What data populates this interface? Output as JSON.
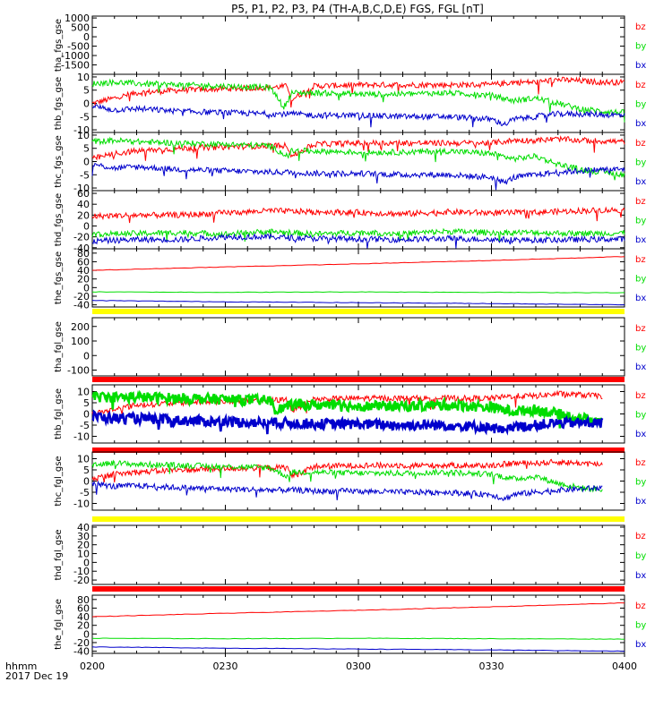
{
  "title": "P5, P1, P2, P3, P4 (TH-A,B,C,D,E) FGS, FGL [nT]",
  "footer": {
    "line1": "hhmm",
    "line2": "2017 Dec 19"
  },
  "colors": {
    "bz": "#ff0000",
    "by": "#00dd00",
    "bx": "#0000cc",
    "yellow": "#ffff00",
    "red": "#ff0000"
  },
  "chart_data": {
    "type": "line",
    "x_ticks": [
      "0200",
      "0230",
      "0300",
      "0330",
      "0400"
    ],
    "x_range_minutes": [
      0,
      120
    ],
    "panels": [
      {
        "ylabel": "tha_fgs_gse",
        "ylim": [
          -2000,
          1100
        ],
        "yticks": [
          1000,
          500,
          0,
          -500,
          -1000,
          -1500
        ],
        "legend": [
          "bz",
          "by",
          "bx"
        ],
        "series": [],
        "status_bar": null
      },
      {
        "ylabel": "thb_fgs_gse",
        "ylim": [
          -11,
          11
        ],
        "yticks": [
          10,
          5,
          0,
          -5,
          -10
        ],
        "legend": [
          "bz",
          "by",
          "bx"
        ],
        "status_bar": null,
        "series": [
          {
            "name": "bz",
            "mode": "wide",
            "x": [
              0,
              5,
              10,
              15,
              20,
              30,
              40,
              44,
              45,
              50,
              60,
              70,
              80,
              90,
              95,
              100,
              105,
              110,
              115,
              120
            ],
            "y": [
              0,
              2,
              4,
              4.5,
              5,
              5.5,
              6,
              6.5,
              1.5,
              6.5,
              7,
              7,
              7,
              7,
              8,
              8,
              9,
              8.5,
              8,
              8
            ]
          },
          {
            "name": "by",
            "mode": "wide",
            "x": [
              0,
              5,
              10,
              20,
              30,
              40,
              42,
              43,
              45,
              50,
              60,
              70,
              80,
              90,
              95,
              100,
              105,
              110,
              115,
              120
            ],
            "y": [
              7.5,
              8,
              7.5,
              7,
              6.5,
              6,
              2,
              -2,
              4,
              4,
              3.5,
              3.5,
              4,
              3,
              1,
              2,
              0,
              -2,
              -3,
              -3.5
            ]
          },
          {
            "name": "bx",
            "mode": "wide",
            "x": [
              0,
              5,
              10,
              20,
              30,
              40,
              45,
              50,
              60,
              70,
              80,
              90,
              93,
              95,
              100,
              105,
              110,
              120
            ],
            "y": [
              -1,
              -2.5,
              -2,
              -3,
              -3.5,
              -4,
              -4,
              -4.5,
              -4.5,
              -5,
              -5,
              -6,
              -8,
              -6,
              -5,
              -4,
              -4,
              -4.5
            ]
          }
        ]
      },
      {
        "ylabel": "thc_fgs_gse",
        "ylim": [
          -11,
          11
        ],
        "yticks": [
          10,
          5,
          0,
          -5,
          -10
        ],
        "legend": [
          "bz",
          "by",
          "bx"
        ],
        "status_bar": null,
        "series": [
          {
            "name": "bz",
            "mode": "wide",
            "x": [
              0,
              5,
              10,
              20,
              30,
              40,
              44,
              45,
              50,
              60,
              70,
              80,
              90,
              95,
              100,
              105,
              110,
              120
            ],
            "y": [
              1,
              3,
              4,
              5,
              5.5,
              6,
              6,
              2,
              6.5,
              7,
              7,
              7,
              7,
              8,
              8,
              8.5,
              8,
              7.5
            ]
          },
          {
            "name": "by",
            "mode": "wide",
            "x": [
              0,
              5,
              10,
              20,
              30,
              40,
              44,
              45,
              50,
              60,
              70,
              80,
              90,
              95,
              100,
              105,
              110,
              115,
              120
            ],
            "y": [
              7.5,
              8,
              7.5,
              7,
              6.5,
              6,
              2,
              4,
              4,
              3.5,
              3.5,
              4,
              3,
              1,
              2,
              -1,
              -3,
              -4,
              -5
            ]
          },
          {
            "name": "bx",
            "mode": "wide",
            "x": [
              0,
              5,
              10,
              20,
              30,
              40,
              45,
              50,
              60,
              70,
              80,
              90,
              93,
              95,
              100,
              105,
              110,
              115,
              120
            ],
            "y": [
              -1,
              -2.5,
              -2,
              -3,
              -3.5,
              -4,
              -4,
              -4.5,
              -4.5,
              -5,
              -5,
              -6,
              -8,
              -6,
              -5,
              -4,
              -3.5,
              -3,
              -3
            ]
          }
        ]
      },
      {
        "ylabel": "thd_fgs_gse",
        "ylim": [
          -42,
          65
        ],
        "yticks": [
          60,
          40,
          20,
          0,
          -20,
          -40
        ],
        "legend": [
          "bz",
          "by",
          "bx"
        ],
        "status_bar": null,
        "series": [
          {
            "name": "bz",
            "mode": "wide",
            "x": [
              0,
              10,
              20,
              30,
              40,
              50,
              60,
              70,
              80,
              90,
              100,
              110,
              120
            ],
            "y": [
              18,
              20,
              20,
              24,
              28,
              26,
              25,
              22,
              26,
              24,
              25,
              28,
              30
            ]
          },
          {
            "name": "by",
            "mode": "wide",
            "x": [
              0,
              10,
              20,
              30,
              40,
              50,
              60,
              70,
              80,
              90,
              100,
              110,
              120
            ],
            "y": [
              -15,
              -14,
              -12,
              -15,
              -10,
              -15,
              -12,
              -14,
              -10,
              -12,
              -12,
              -14,
              -13
            ]
          },
          {
            "name": "bx",
            "mode": "wide",
            "x": [
              0,
              10,
              20,
              30,
              40,
              50,
              60,
              70,
              80,
              90,
              100,
              110,
              120
            ],
            "y": [
              -28,
              -25,
              -25,
              -20,
              -20,
              -23,
              -24,
              -25,
              -23,
              -25,
              -26,
              -25,
              -24
            ]
          }
        ]
      },
      {
        "ylabel": "the_fgs_gse",
        "ylim": [
          -45,
          90
        ],
        "yticks": [
          80,
          60,
          40,
          20,
          0,
          -20,
          -40
        ],
        "legend": [
          "bz",
          "by",
          "bx"
        ],
        "status_bar": "yellow",
        "series": [
          {
            "name": "bz",
            "mode": "smooth",
            "x": [
              0,
              30,
              60,
              90,
              120
            ],
            "y": [
              40,
              48,
              55,
              63,
              72
            ]
          },
          {
            "name": "by",
            "mode": "smooth",
            "x": [
              0,
              30,
              60,
              90,
              120
            ],
            "y": [
              -10,
              -11,
              -10,
              -11,
              -12
            ]
          },
          {
            "name": "bx",
            "mode": "smooth",
            "x": [
              0,
              30,
              60,
              90,
              120
            ],
            "y": [
              -30,
              -33,
              -35,
              -37,
              -40
            ]
          }
        ]
      },
      {
        "ylabel": "tha_fgl_gse",
        "ylim": [
          -140,
          260
        ],
        "yticks": [
          200,
          100,
          0,
          -100
        ],
        "legend": [
          "bz",
          "by",
          "bx"
        ],
        "series": [],
        "status_bar": "red"
      },
      {
        "ylabel": "thb_fgl_gse",
        "ylim": [
          -13,
          13
        ],
        "yticks": [
          10,
          5,
          0,
          -5,
          -10
        ],
        "legend": [
          "bz",
          "by",
          "bx"
        ],
        "status_bar": "red",
        "series": [
          {
            "name": "bz",
            "mode": "wide",
            "x": [
              0,
              5,
              10,
              20,
              30,
              40,
              44,
              45,
              50,
              60,
              70,
              80,
              90,
              95,
              100,
              105,
              110,
              115
            ],
            "y": [
              0,
              2,
              4,
              5,
              5.5,
              6,
              6.5,
              1.5,
              6.5,
              7,
              7,
              7,
              7,
              8,
              8,
              9,
              8.5,
              8
            ]
          },
          {
            "name": "by",
            "mode": "band",
            "x": [
              0,
              10,
              20,
              30,
              40,
              42,
              45,
              50,
              60,
              70,
              80,
              90,
              95,
              100,
              105,
              110,
              115
            ],
            "y": [
              7.5,
              7.5,
              7,
              6.5,
              6,
              2,
              4,
              4,
              3.5,
              3.5,
              4,
              3,
              1,
              2,
              0,
              -2,
              -3
            ]
          },
          {
            "name": "bx",
            "mode": "band",
            "x": [
              0,
              5,
              10,
              20,
              30,
              40,
              45,
              50,
              60,
              70,
              80,
              90,
              93,
              95,
              100,
              105,
              110,
              115
            ],
            "y": [
              -1,
              -2,
              -2,
              -3,
              -3.5,
              -4,
              -4,
              -4.5,
              -4.5,
              -5,
              -5,
              -6,
              -8,
              -6,
              -5,
              -4,
              -4,
              -4
            ]
          }
        ]
      },
      {
        "ylabel": "thc_fgl_gse",
        "ylim": [
          -13,
          13
        ],
        "yticks": [
          10,
          5,
          0,
          -5,
          -10
        ],
        "legend": [
          "bz",
          "by",
          "bx"
        ],
        "status_bar": "yellow",
        "series": [
          {
            "name": "bz",
            "mode": "wide",
            "x": [
              0,
              5,
              10,
              20,
              30,
              40,
              44,
              45,
              50,
              60,
              70,
              80,
              90,
              95,
              100,
              105,
              110,
              115
            ],
            "y": [
              1,
              3,
              4,
              5,
              5.5,
              6,
              6,
              2,
              6.5,
              7,
              7,
              7,
              7,
              8,
              8,
              8.5,
              8,
              7.5
            ]
          },
          {
            "name": "by",
            "mode": "wide",
            "x": [
              0,
              5,
              10,
              20,
              30,
              40,
              44,
              45,
              50,
              60,
              70,
              80,
              90,
              95,
              100,
              105,
              110,
              115
            ],
            "y": [
              7.5,
              8,
              7.5,
              7,
              6.5,
              6,
              2,
              4,
              4,
              3.5,
              3.5,
              4,
              3,
              1,
              2,
              -1,
              -3,
              -4
            ]
          },
          {
            "name": "bx",
            "mode": "wide",
            "x": [
              0,
              5,
              10,
              20,
              30,
              40,
              45,
              50,
              60,
              70,
              80,
              90,
              93,
              95,
              100,
              105,
              110,
              115
            ],
            "y": [
              -1,
              -2.5,
              -2,
              -3,
              -3.5,
              -4,
              -4,
              -4.5,
              -4.5,
              -5,
              -5,
              -6,
              -8,
              -6,
              -5,
              -4,
              -3.5,
              -3
            ]
          }
        ]
      },
      {
        "ylabel": "thd_fgl_gse",
        "ylim": [
          -25,
          42
        ],
        "yticks": [
          40,
          30,
          20,
          10,
          0,
          -10,
          -20
        ],
        "legend": [
          "bz",
          "by",
          "bx"
        ],
        "series": [],
        "status_bar": "red"
      },
      {
        "ylabel": "the_fgl_gse",
        "ylim": [
          -45,
          90
        ],
        "yticks": [
          80,
          60,
          40,
          20,
          0,
          -20,
          -40
        ],
        "legend": [
          "bz",
          "by",
          "bx"
        ],
        "status_bar": null,
        "series": [
          {
            "name": "bz",
            "mode": "smooth",
            "x": [
              0,
              30,
              60,
              90,
              120
            ],
            "y": [
              40,
              48,
              55,
              63,
              72
            ]
          },
          {
            "name": "by",
            "mode": "smooth",
            "x": [
              0,
              30,
              60,
              90,
              120
            ],
            "y": [
              -10,
              -11,
              -10,
              -11,
              -12
            ]
          },
          {
            "name": "bx",
            "mode": "smooth",
            "x": [
              0,
              30,
              60,
              90,
              120
            ],
            "y": [
              -30,
              -33,
              -35,
              -37,
              -40
            ]
          }
        ]
      }
    ]
  }
}
